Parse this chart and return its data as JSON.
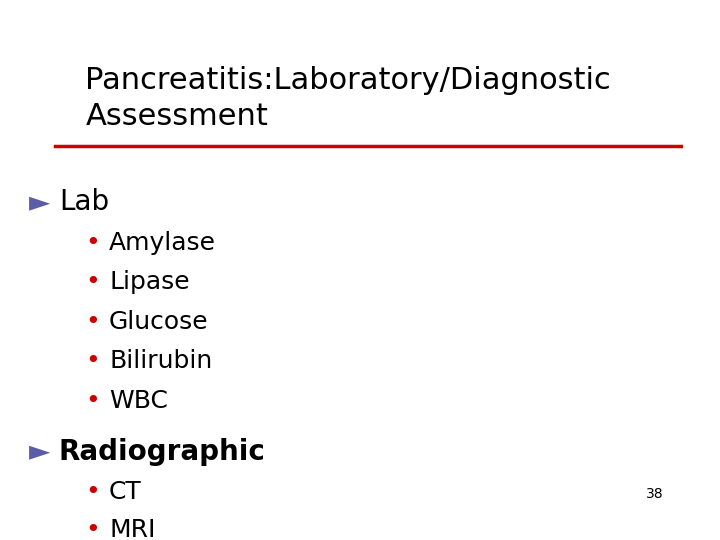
{
  "title_line1": "Pancreatitis:Laboratory/Diagnostic",
  "title_line2": "Assessment",
  "background_color": "#ffffff",
  "title_color": "#000000",
  "title_fontsize": 22,
  "rule_color": "#cc0000",
  "section1_label": "Lab",
  "section1_arrow_color": "#5b5ea6",
  "section1_items": [
    "Amylase",
    "Lipase",
    "Glucose",
    "Bilirubin",
    "WBC"
  ],
  "section2_label": "Radiographic",
  "section2_arrow_color": "#5b5ea6",
  "section2_items": [
    "CT",
    "MRI"
  ],
  "bullet_color": "#cc0000",
  "section_fontsize": 20,
  "item_fontsize": 18,
  "arrow_fontsize": 20,
  "page_number": "38",
  "page_number_fontsize": 10,
  "page_number_color": "#000000"
}
